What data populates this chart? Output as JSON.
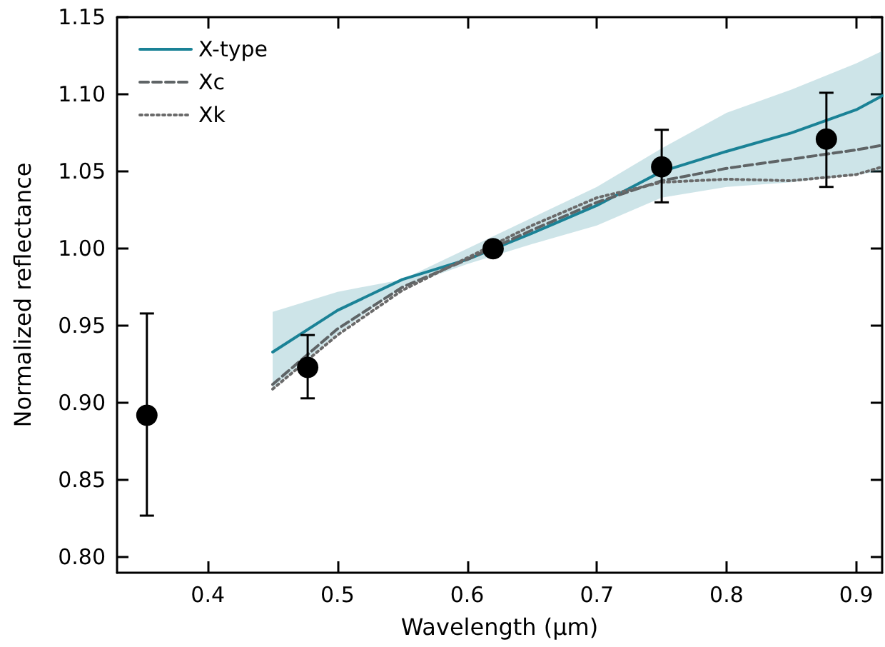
{
  "chart_data": {
    "type": "line",
    "xlabel": "Wavelength (μm)",
    "ylabel": "Normalized reflectance",
    "xlim": [
      0.33,
      0.92
    ],
    "ylim": [
      0.79,
      1.15
    ],
    "xticks": [
      0.4,
      0.5,
      0.6,
      0.7,
      0.8,
      0.9
    ],
    "yticks": [
      {
        "value": 0.8,
        "label": "0.80"
      },
      {
        "value": 0.85,
        "label": "0.85"
      },
      {
        "value": 0.9,
        "label": "0.90"
      },
      {
        "value": 0.95,
        "label": "0.95"
      },
      {
        "value": 1.0,
        "label": "1.00"
      },
      {
        "value": 1.05,
        "label": "1.05"
      },
      {
        "value": 1.1,
        "label": "1.10"
      },
      {
        "value": 1.15,
        "label": "1.15"
      }
    ],
    "grid": false,
    "legend": "top left",
    "series": [
      {
        "name": "X-type",
        "color": "#1a8296",
        "line_style": "solid",
        "marker": "none",
        "x": [
          0.45,
          0.5,
          0.55,
          0.6,
          0.65,
          0.7,
          0.75,
          0.8,
          0.85,
          0.9,
          0.92
        ],
        "values": [
          0.933,
          0.96,
          0.98,
          0.993,
          1.01,
          1.028,
          1.05,
          1.063,
          1.075,
          1.09,
          1.099
        ],
        "lower": [
          0.91,
          0.945,
          0.975,
          0.99,
          1.003,
          1.015,
          1.033,
          1.04,
          1.043,
          1.048,
          1.05
        ],
        "upper": [
          0.959,
          0.972,
          0.98,
          1.0,
          1.02,
          1.04,
          1.065,
          1.088,
          1.103,
          1.12,
          1.128
        ]
      },
      {
        "name": "Xc",
        "color": "#5f6466",
        "line_style": "dashed",
        "marker": "none",
        "x": [
          0.45,
          0.5,
          0.55,
          0.6,
          0.65,
          0.7,
          0.75,
          0.8,
          0.85,
          0.9,
          0.92
        ],
        "values": [
          0.912,
          0.948,
          0.975,
          0.993,
          1.012,
          1.03,
          1.044,
          1.052,
          1.058,
          1.064,
          1.067
        ]
      },
      {
        "name": "Xk",
        "color": "#6a6a6a",
        "line_style": "dotted",
        "marker": "none",
        "x": [
          0.45,
          0.5,
          0.55,
          0.6,
          0.65,
          0.7,
          0.75,
          0.8,
          0.85,
          0.9,
          0.92
        ],
        "values": [
          0.909,
          0.944,
          0.973,
          0.994,
          1.015,
          1.033,
          1.043,
          1.045,
          1.044,
          1.048,
          1.053
        ]
      },
      {
        "type": "scatter",
        "color": "#000000",
        "marker": "circle",
        "x": [
          0.353,
          0.477,
          0.62,
          0.75,
          0.877
        ],
        "values": [
          0.892,
          0.923,
          1.0,
          1.053,
          1.071
        ],
        "errors": [
          [
            0.827,
            0.958
          ],
          [
            0.903,
            0.944
          ],
          null,
          [
            1.03,
            1.077
          ],
          [
            1.04,
            1.101
          ]
        ]
      }
    ]
  }
}
